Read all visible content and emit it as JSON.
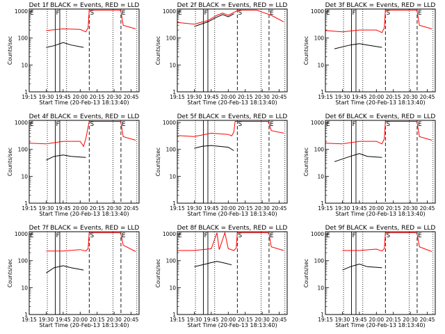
{
  "figure": {
    "xlabel": "Start Time (20-Feb-13 18:13:40)",
    "ylabel": "Counts/sec",
    "xticks": [
      "19:15",
      "19:30",
      "19:45",
      "20:00",
      "20:15",
      "20:30",
      "20:45"
    ],
    "yticks": [
      "1",
      "10",
      "100",
      "1000"
    ],
    "series_colors": {
      "events": "#000000",
      "lld": "#ff0000"
    }
  },
  "chart_data": [
    {
      "type": "line",
      "title": "Det 1f BLACK = Events, RED = LLD",
      "yscale": "log",
      "ylim": [
        1,
        1200
      ],
      "xlim": [
        "19:15",
        "20:52"
      ],
      "vlines_dotted": [
        "19:31",
        "19:48",
        "20:29",
        "20:50"
      ],
      "vlines_dashed": [
        "20:08",
        "20:36"
      ],
      "boxes": [
        [
          "19:38",
          "19:42"
        ]
      ],
      "markers": [
        {
          "label": "E",
          "x": "19:15"
        },
        {
          "label": "F",
          "x": "19:38"
        },
        {
          "label": "S",
          "x": "20:08"
        },
        {
          "label": "E",
          "x": "20:36"
        }
      ],
      "series": [
        {
          "key": "lld",
          "x": [
            "19:30",
            "19:45",
            "20:00",
            "20:05",
            "20:07",
            "20:08",
            "20:35",
            "20:36",
            "20:38",
            "20:49"
          ],
          "values": [
            190,
            220,
            210,
            170,
            240,
            1100,
            1100,
            1000,
            300,
            220
          ]
        },
        {
          "key": "events",
          "x": [
            "19:30",
            "19:37",
            "19:45",
            "19:52",
            "20:03"
          ],
          "values": [
            45,
            52,
            68,
            55,
            45
          ]
        }
      ]
    },
    {
      "type": "line",
      "title": "Det 2f BLACK = Events, RED = LLD",
      "yscale": "log",
      "ylim": [
        1,
        1200
      ],
      "xlim": [
        "19:15",
        "20:52"
      ],
      "vlines_dotted": [
        "19:31",
        "19:48",
        "20:29",
        "20:50"
      ],
      "vlines_dashed": [
        "20:08",
        "20:36"
      ],
      "boxes": [
        [
          "19:38",
          "19:42"
        ]
      ],
      "markers": [
        {
          "label": "E",
          "x": "19:15"
        },
        {
          "label": "F",
          "x": "19:38"
        },
        {
          "label": "S",
          "x": "20:08"
        },
        {
          "label": "E",
          "x": "20:36"
        }
      ],
      "series": [
        {
          "key": "lld",
          "x": [
            "19:15",
            "19:30",
            "19:42",
            "19:50",
            "19:55",
            "20:00",
            "20:05",
            "20:09",
            "20:25",
            "20:38",
            "20:49"
          ],
          "values": [
            380,
            330,
            450,
            700,
            850,
            700,
            900,
            1100,
            1100,
            700,
            400
          ]
        },
        {
          "key": "events",
          "x": [
            "19:30",
            "19:42",
            "19:50",
            "19:55",
            "20:00",
            "20:05"
          ],
          "values": [
            270,
            400,
            600,
            750,
            620,
            800
          ]
        }
      ]
    },
    {
      "type": "line",
      "title": "Det 3f BLACK = Events, RED = LLD",
      "yscale": "log",
      "ylim": [
        1,
        1200
      ],
      "xlim": [
        "19:15",
        "20:52"
      ],
      "vlines_dotted": [
        "19:31",
        "19:48",
        "20:29",
        "20:50"
      ],
      "vlines_dashed": [
        "20:08",
        "20:36"
      ],
      "boxes": [
        [
          "19:38",
          "19:42"
        ]
      ],
      "markers": [
        {
          "label": "E",
          "x": "19:15"
        },
        {
          "label": "F",
          "x": "19:38"
        },
        {
          "label": "S",
          "x": "20:08"
        },
        {
          "label": "E",
          "x": "20:36"
        }
      ],
      "series": [
        {
          "key": "lld",
          "x": [
            "19:15",
            "19:30",
            "19:45",
            "20:00",
            "20:05",
            "20:07",
            "20:08",
            "20:35",
            "20:36",
            "20:38",
            "20:49"
          ],
          "values": [
            190,
            170,
            200,
            200,
            160,
            240,
            1100,
            1100,
            1000,
            300,
            220
          ]
        },
        {
          "key": "events",
          "x": [
            "19:23",
            "19:37",
            "19:45",
            "19:52",
            "20:05"
          ],
          "values": [
            40,
            55,
            62,
            55,
            45
          ]
        }
      ]
    },
    {
      "type": "line",
      "title": "Det 4f BLACK = Events, RED = LLD",
      "yscale": "log",
      "ylim": [
        1,
        1200
      ],
      "xlim": [
        "19:15",
        "20:52"
      ],
      "vlines_dotted": [
        "19:31",
        "19:48",
        "20:29",
        "20:50"
      ],
      "vlines_dashed": [
        "20:08",
        "20:36"
      ],
      "boxes": [
        [
          "19:38",
          "19:42"
        ]
      ],
      "markers": [
        {
          "label": "E",
          "x": "19:15"
        },
        {
          "label": "F",
          "x": "19:38"
        },
        {
          "label": "S",
          "x": "20:08"
        },
        {
          "label": "E",
          "x": "20:36"
        }
      ],
      "series": [
        {
          "key": "lld",
          "x": [
            "19:15",
            "19:30",
            "19:45",
            "20:00",
            "20:03",
            "20:05",
            "20:08",
            "20:35",
            "20:36",
            "20:38",
            "20:49"
          ],
          "values": [
            170,
            160,
            200,
            200,
            130,
            250,
            1100,
            1100,
            1000,
            300,
            220
          ]
        },
        {
          "key": "events",
          "x": [
            "19:30",
            "19:37",
            "19:45",
            "19:52",
            "20:05"
          ],
          "values": [
            40,
            55,
            62,
            55,
            50
          ]
        }
      ]
    },
    {
      "type": "line",
      "title": "Det 5f BLACK = Events, RED = LLD",
      "yscale": "log",
      "ylim": [
        1,
        1200
      ],
      "xlim": [
        "19:15",
        "20:52"
      ],
      "vlines_dotted": [
        "19:31",
        "19:48",
        "20:29",
        "20:50"
      ],
      "vlines_dashed": [
        "20:08",
        "20:36"
      ],
      "boxes": [
        [
          "19:38",
          "19:42"
        ]
      ],
      "markers": [
        {
          "label": "S",
          "x": "20:08"
        },
        {
          "label": "E",
          "x": "20:36"
        }
      ],
      "series": [
        {
          "key": "lld",
          "x": [
            "19:15",
            "19:30",
            "19:45",
            "20:00",
            "20:03",
            "20:05",
            "20:06",
            "20:35",
            "20:36",
            "20:38",
            "20:49"
          ],
          "values": [
            330,
            300,
            400,
            360,
            320,
            450,
            1100,
            1100,
            900,
            500,
            400
          ]
        },
        {
          "key": "events",
          "x": [
            "19:30",
            "19:37",
            "19:45",
            "20:00",
            "20:05"
          ],
          "values": [
            110,
            130,
            140,
            120,
            90
          ]
        }
      ]
    },
    {
      "type": "line",
      "title": "Det 6f BLACK = Events, RED = LLD",
      "yscale": "log",
      "ylim": [
        1,
        1200
      ],
      "xlim": [
        "19:15",
        "20:52"
      ],
      "vlines_dotted": [
        "19:31",
        "19:48",
        "20:29",
        "20:50"
      ],
      "vlines_dashed": [
        "20:08",
        "20:36"
      ],
      "boxes": [
        [
          "19:38",
          "19:42"
        ]
      ],
      "markers": [
        {
          "label": "E",
          "x": "19:15"
        },
        {
          "label": "F",
          "x": "19:38"
        },
        {
          "label": "S",
          "x": "20:08"
        },
        {
          "label": "E",
          "x": "20:36"
        }
      ],
      "series": [
        {
          "key": "lld",
          "x": [
            "19:15",
            "19:30",
            "19:45",
            "20:00",
            "20:05",
            "20:07",
            "20:08",
            "20:35",
            "20:36",
            "20:38",
            "20:49"
          ],
          "values": [
            170,
            160,
            200,
            200,
            160,
            250,
            1100,
            1100,
            1000,
            300,
            220
          ]
        },
        {
          "key": "events",
          "x": [
            "19:23",
            "19:37",
            "19:45",
            "19:52",
            "20:05"
          ],
          "values": [
            35,
            55,
            70,
            55,
            50
          ]
        }
      ]
    },
    {
      "type": "line",
      "title": "Det 7f BLACK = Events, RED = LLD",
      "yscale": "log",
      "ylim": [
        1,
        1200
      ],
      "xlim": [
        "19:15",
        "20:52"
      ],
      "vlines_dotted": [
        "19:31",
        "19:48",
        "20:29",
        "20:50"
      ],
      "vlines_dashed": [
        "20:08",
        "20:36"
      ],
      "boxes": [
        [
          "19:38",
          "19:42"
        ]
      ],
      "markers": [
        {
          "label": "E",
          "x": "19:15"
        },
        {
          "label": "F",
          "x": "19:38"
        },
        {
          "label": "S",
          "x": "20:08"
        },
        {
          "label": "E",
          "x": "20:36"
        }
      ],
      "series": [
        {
          "key": "lld",
          "x": [
            "19:30",
            "19:45",
            "20:00",
            "20:05",
            "20:07",
            "20:08",
            "20:35",
            "20:36",
            "20:38",
            "20:49"
          ],
          "values": [
            230,
            230,
            260,
            230,
            280,
            1100,
            1100,
            1000,
            380,
            220
          ]
        },
        {
          "key": "events",
          "x": [
            "19:30",
            "19:37",
            "19:45",
            "19:52",
            "20:03"
          ],
          "values": [
            35,
            55,
            65,
            55,
            45
          ]
        }
      ]
    },
    {
      "type": "line",
      "title": "Det 8f BLACK = Events, RED = LLD",
      "yscale": "log",
      "ylim": [
        1,
        1200
      ],
      "xlim": [
        "19:15",
        "20:52"
      ],
      "vlines_dotted": [
        "19:31",
        "19:48",
        "20:29",
        "20:50"
      ],
      "vlines_dashed": [
        "20:08",
        "20:36"
      ],
      "boxes": [
        [
          "19:38",
          "19:42"
        ]
      ],
      "markers": [
        {
          "label": "E",
          "x": "19:15"
        },
        {
          "label": "F",
          "x": "19:38"
        },
        {
          "label": "S",
          "x": "20:08"
        },
        {
          "label": "E",
          "x": "20:36"
        }
      ],
      "series": [
        {
          "key": "lld",
          "x": [
            "19:15",
            "19:30",
            "19:45",
            "19:50",
            "19:52",
            "19:57",
            "20:00",
            "20:05",
            "20:07",
            "20:08",
            "20:35",
            "20:36",
            "20:38",
            "20:49"
          ],
          "values": [
            240,
            240,
            280,
            1100,
            260,
            1100,
            280,
            240,
            300,
            1100,
            1100,
            1000,
            330,
            240
          ]
        },
        {
          "key": "events",
          "x": [
            "19:30",
            "19:40",
            "19:45",
            "19:50",
            "19:58",
            "20:03"
          ],
          "values": [
            60,
            75,
            85,
            95,
            80,
            70
          ]
        }
      ]
    },
    {
      "type": "line",
      "title": "Det 9f BLACK = Events, RED = LLD",
      "yscale": "log",
      "ylim": [
        1,
        1200
      ],
      "xlim": [
        "19:15",
        "20:52"
      ],
      "vlines_dotted": [
        "19:31",
        "19:48",
        "20:29",
        "20:50"
      ],
      "vlines_dashed": [
        "20:08",
        "20:36"
      ],
      "boxes": [
        [
          "19:38",
          "19:42"
        ]
      ],
      "markers": [
        {
          "label": "E",
          "x": "19:15"
        },
        {
          "label": "F",
          "x": "19:38"
        },
        {
          "label": "S",
          "x": "20:08"
        },
        {
          "label": "E",
          "x": "20:36"
        }
      ],
      "series": [
        {
          "key": "lld",
          "x": [
            "19:30",
            "19:45",
            "20:00",
            "20:05",
            "20:07",
            "20:08",
            "20:35",
            "20:36",
            "20:38",
            "20:49"
          ],
          "values": [
            240,
            240,
            270,
            230,
            280,
            1100,
            1100,
            1000,
            330,
            220
          ]
        },
        {
          "key": "events",
          "x": [
            "19:30",
            "19:37",
            "19:45",
            "19:52",
            "20:05"
          ],
          "values": [
            45,
            60,
            75,
            60,
            55
          ]
        }
      ]
    }
  ]
}
